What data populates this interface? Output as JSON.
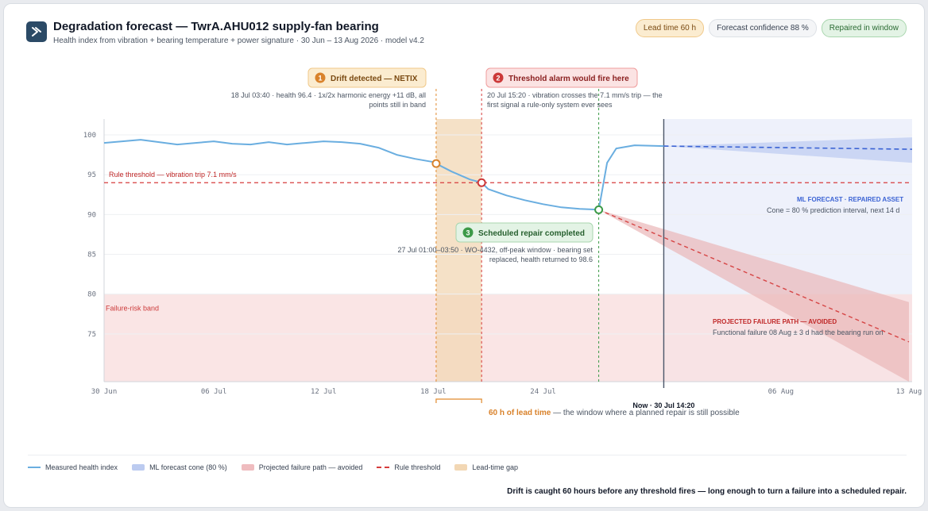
{
  "header": {
    "title": "Degradation forecast — TwrA.AHU012 supply-fan bearing",
    "subtitle": "Health index from vibration + bearing temperature + power signature · 30 Jun – 13 Aug 2026 · model v4.2",
    "logo_icon": "arrow-logo-icon",
    "badges": [
      {
        "label": "Lead time 60 h",
        "tone": "amber"
      },
      {
        "label": "Forecast confidence 88 %",
        "tone": "grey"
      },
      {
        "label": "Repaired in window",
        "tone": "green"
      }
    ]
  },
  "chart_data": {
    "type": "line",
    "x_axis": {
      "range": [
        "2026-06-30",
        "2026-08-13"
      ],
      "ticks": [
        {
          "date": "2026-06-30",
          "label": "30 Jun"
        },
        {
          "date": "2026-07-06",
          "label": "06 Jul"
        },
        {
          "date": "2026-07-12",
          "label": "12 Jul"
        },
        {
          "date": "2026-07-18",
          "label": "18 Jul"
        },
        {
          "date": "2026-07-24",
          "label": "24 Jul"
        },
        {
          "date": "2026-08-06",
          "label": "06 Aug"
        },
        {
          "date": "2026-08-13",
          "label": "13 Aug"
        }
      ]
    },
    "y_axis": {
      "range": [
        69,
        102
      ],
      "ticks": [
        75,
        80,
        85,
        90,
        95,
        100
      ]
    },
    "measured_series": {
      "name": "Measured health index",
      "points": [
        [
          "2026-06-30",
          99.0
        ],
        [
          "2026-07-01",
          99.2
        ],
        [
          "2026-07-02",
          99.4
        ],
        [
          "2026-07-03",
          99.1
        ],
        [
          "2026-07-04",
          98.8
        ],
        [
          "2026-07-05",
          99.0
        ],
        [
          "2026-07-06",
          99.2
        ],
        [
          "2026-07-07",
          98.9
        ],
        [
          "2026-07-08",
          98.8
        ],
        [
          "2026-07-09",
          99.1
        ],
        [
          "2026-07-10",
          98.8
        ],
        [
          "2026-07-11",
          99.0
        ],
        [
          "2026-07-12",
          99.2
        ],
        [
          "2026-07-13",
          99.1
        ],
        [
          "2026-07-14",
          98.9
        ],
        [
          "2026-07-15",
          98.4
        ],
        [
          "2026-07-16",
          97.5
        ],
        [
          "2026-07-17",
          97.0
        ],
        [
          "2026-07-18",
          96.6
        ],
        [
          "2026-07-18T03:40",
          96.4
        ],
        [
          "2026-07-19",
          95.4
        ],
        [
          "2026-07-20",
          94.4
        ],
        [
          "2026-07-20T15:20",
          94.0
        ],
        [
          "2026-07-21",
          93.2
        ],
        [
          "2026-07-22",
          92.4
        ],
        [
          "2026-07-23",
          91.8
        ],
        [
          "2026-07-24",
          91.3
        ],
        [
          "2026-07-25",
          90.9
        ],
        [
          "2026-07-26",
          90.7
        ],
        [
          "2026-07-27T01:00",
          90.6
        ],
        [
          "2026-07-27T12:00",
          96.5
        ],
        [
          "2026-07-28",
          98.3
        ],
        [
          "2026-07-29",
          98.7
        ],
        [
          "2026-07-30T14:20",
          98.6
        ]
      ]
    },
    "forecast_repaired": {
      "name": "ML FORECAST · REPAIRED ASSET",
      "start": [
        "2026-07-30T14:20",
        98.6
      ],
      "end": [
        "2026-08-13",
        98.2
      ],
      "cone_end": [
        96.5,
        99.7
      ]
    },
    "failure_path": {
      "name": "PROJECTED FAILURE PATH — AVOIDED",
      "start": [
        "2026-07-27T01:00",
        90.6
      ],
      "end": [
        "2026-08-13",
        74.0
      ],
      "cone_end": [
        66.0,
        79.0
      ]
    },
    "threshold": {
      "value": 94.0,
      "label": "Rule threshold — vibration trip 7.1 mm/s"
    },
    "failure_band": {
      "range": [
        69,
        80
      ],
      "label": "Failure-risk band"
    },
    "lead_time_gap": {
      "start": "2026-07-18T03:40",
      "end": "2026-07-20T15:20"
    },
    "now": {
      "date": "2026-07-30T14:20",
      "label": "Now · 30 Jul 14:20"
    },
    "annotations": [
      {
        "num": "1",
        "title": "Drift detected — NETIX",
        "date": "2026-07-18T03:40",
        "value": 96.4,
        "tone": "amber",
        "lines": [
          "18 Jul 03:40 · health 96.4 · 1x/2x harmonic energy +11 dB, all",
          "points still in band"
        ]
      },
      {
        "num": "2",
        "title": "Threshold alarm would fire here",
        "date": "2026-07-20T15:20",
        "value": 94.0,
        "tone": "red",
        "lines": [
          "20 Jul 15:20 · vibration crosses the 7.1 mm/s trip — the",
          "first signal a rule-only system ever sees"
        ]
      },
      {
        "num": "3",
        "title": "Scheduled repair completed",
        "date": "2026-07-27T01:00",
        "value": 90.6,
        "tone": "green",
        "lines": [
          "27 Jul 01:00–03:50 · WO-4432, off-peak window · bearing set",
          "replaced, health returned to 98.6"
        ]
      }
    ],
    "side_notes": {
      "forecast_title": "ML FORECAST · REPAIRED ASSET",
      "forecast_text": "Cone = 80 % prediction interval, next 14 d",
      "failure_title": "PROJECTED FAILURE PATH — AVOIDED",
      "failure_text": "Functional failure 08 Aug ± 3 d had the bearing run on"
    },
    "lead_time_note": {
      "bold": "60 h of lead time",
      "rest": " — the window where a planned repair is still possible"
    },
    "colors": {
      "measured": "#6aaee0",
      "forecast": "#3b63d4",
      "forecast_cone": "#c6d3f3",
      "failure": "#d64545",
      "failure_cone": "#eab6b8",
      "threshold": "#d63c3c",
      "gap": "#f2d7b4",
      "band": "#f9e1e1",
      "repair": "#3c9a48",
      "now": "#4a5568",
      "future_bg": "#eef1fb"
    }
  },
  "legend": [
    {
      "label": "Measured health index",
      "swatch": "line",
      "color": "#6aaee0"
    },
    {
      "label": "ML forecast cone (80 %)",
      "swatch": "box",
      "color": "#bccbf0"
    },
    {
      "label": "Projected failure path — avoided",
      "swatch": "box",
      "color": "#efbcbf"
    },
    {
      "label": "Rule threshold",
      "swatch": "dash",
      "color": "#d63c3c"
    },
    {
      "label": "Lead-time gap",
      "swatch": "box",
      "color": "#f2d7b4"
    }
  ],
  "footer": "Drift is caught 60 hours before any threshold fires — long enough to turn a failure into a scheduled repair."
}
